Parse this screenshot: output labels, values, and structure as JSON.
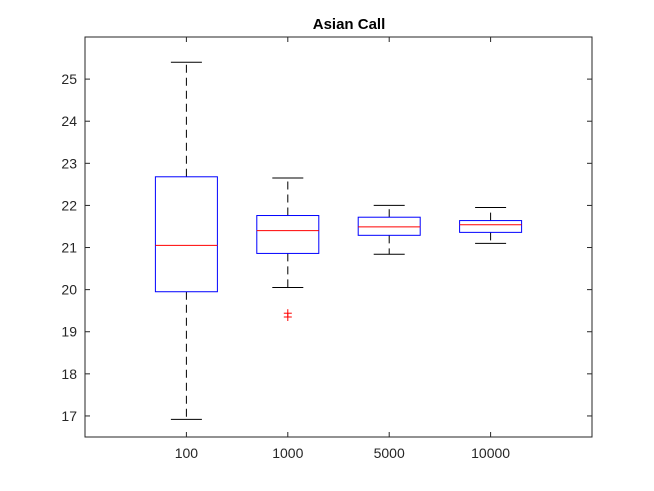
{
  "chart_data": {
    "type": "boxplot",
    "title": "Asian Call",
    "xlabel": "",
    "ylabel": "",
    "categories": [
      "100",
      "1000",
      "5000",
      "10000"
    ],
    "ylim": [
      16.5,
      26.0
    ],
    "yticks": [
      17,
      18,
      19,
      20,
      21,
      22,
      23,
      24,
      25
    ],
    "grid": false,
    "colors": {
      "box": "#0000ff",
      "median": "#ff0000",
      "whisker": "#000000",
      "outlier": "#ff0000",
      "axis": "#262626"
    },
    "boxes": [
      {
        "category": "100",
        "whisker_low": 16.92,
        "q1": 19.95,
        "median": 21.05,
        "q3": 22.68,
        "whisker_high": 25.4,
        "outliers": []
      },
      {
        "category": "1000",
        "whisker_low": 20.05,
        "q1": 20.86,
        "median": 21.4,
        "q3": 21.76,
        "whisker_high": 22.65,
        "outliers": [
          19.35,
          19.44
        ]
      },
      {
        "category": "5000",
        "whisker_low": 20.84,
        "q1": 21.29,
        "median": 21.49,
        "q3": 21.72,
        "whisker_high": 22.0,
        "outliers": []
      },
      {
        "category": "10000",
        "whisker_low": 21.1,
        "q1": 21.36,
        "median": 21.54,
        "q3": 21.64,
        "whisker_high": 21.95,
        "outliers": []
      }
    ]
  }
}
